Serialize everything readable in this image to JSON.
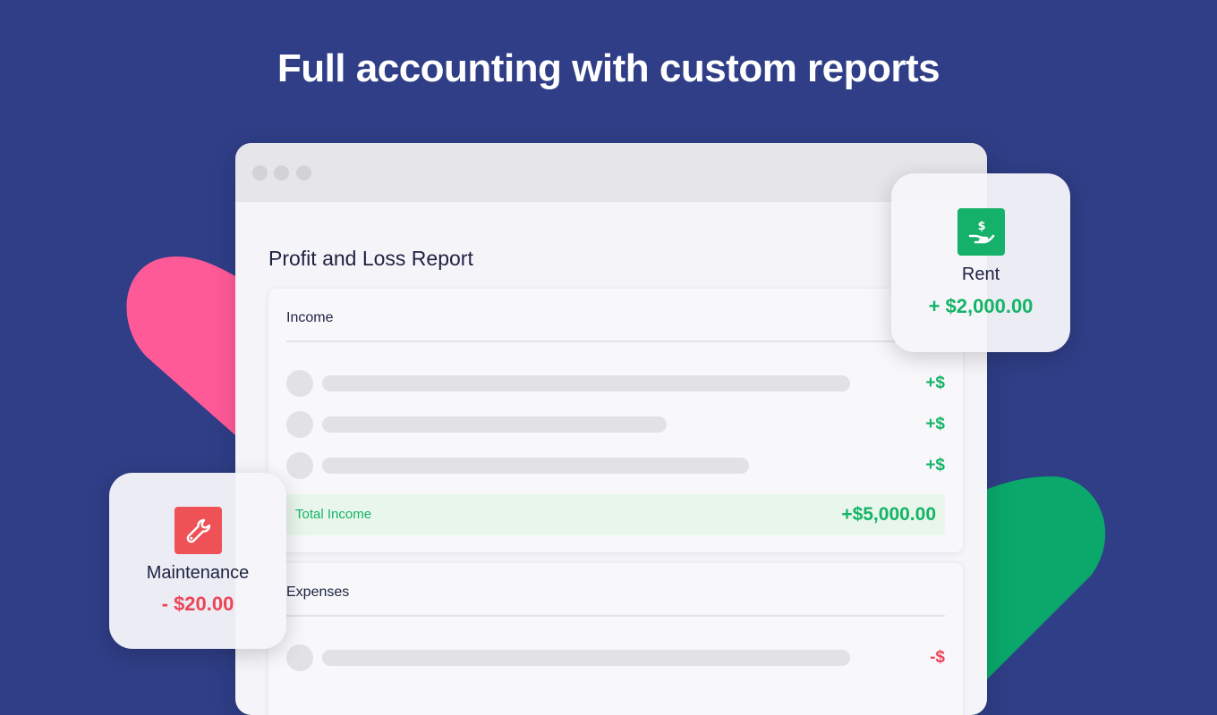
{
  "headline": "Full accounting with custom reports",
  "colors": {
    "background": "#2f3e86",
    "income_green": "#14b466",
    "expense_red": "#ee4357",
    "accent_pink": "#ff5a98",
    "accent_green": "#0aa86a"
  },
  "report": {
    "title": "Profit and Loss Report",
    "income": {
      "heading": "Income",
      "rows": [
        {
          "amount": "+$"
        },
        {
          "amount": "+$"
        },
        {
          "amount": "+$"
        }
      ],
      "total_label": "Total Income",
      "total_value": "+$5,000.00"
    },
    "expenses": {
      "heading": "Expenses",
      "rows": [
        {
          "amount": "-$"
        }
      ]
    }
  },
  "cards": {
    "rent": {
      "icon": "hand-dollar-icon",
      "label": "Rent",
      "amount": "+ $2,000.00"
    },
    "maintenance": {
      "icon": "wrench-icon",
      "label": "Maintenance",
      "amount": "- $20.00"
    }
  }
}
